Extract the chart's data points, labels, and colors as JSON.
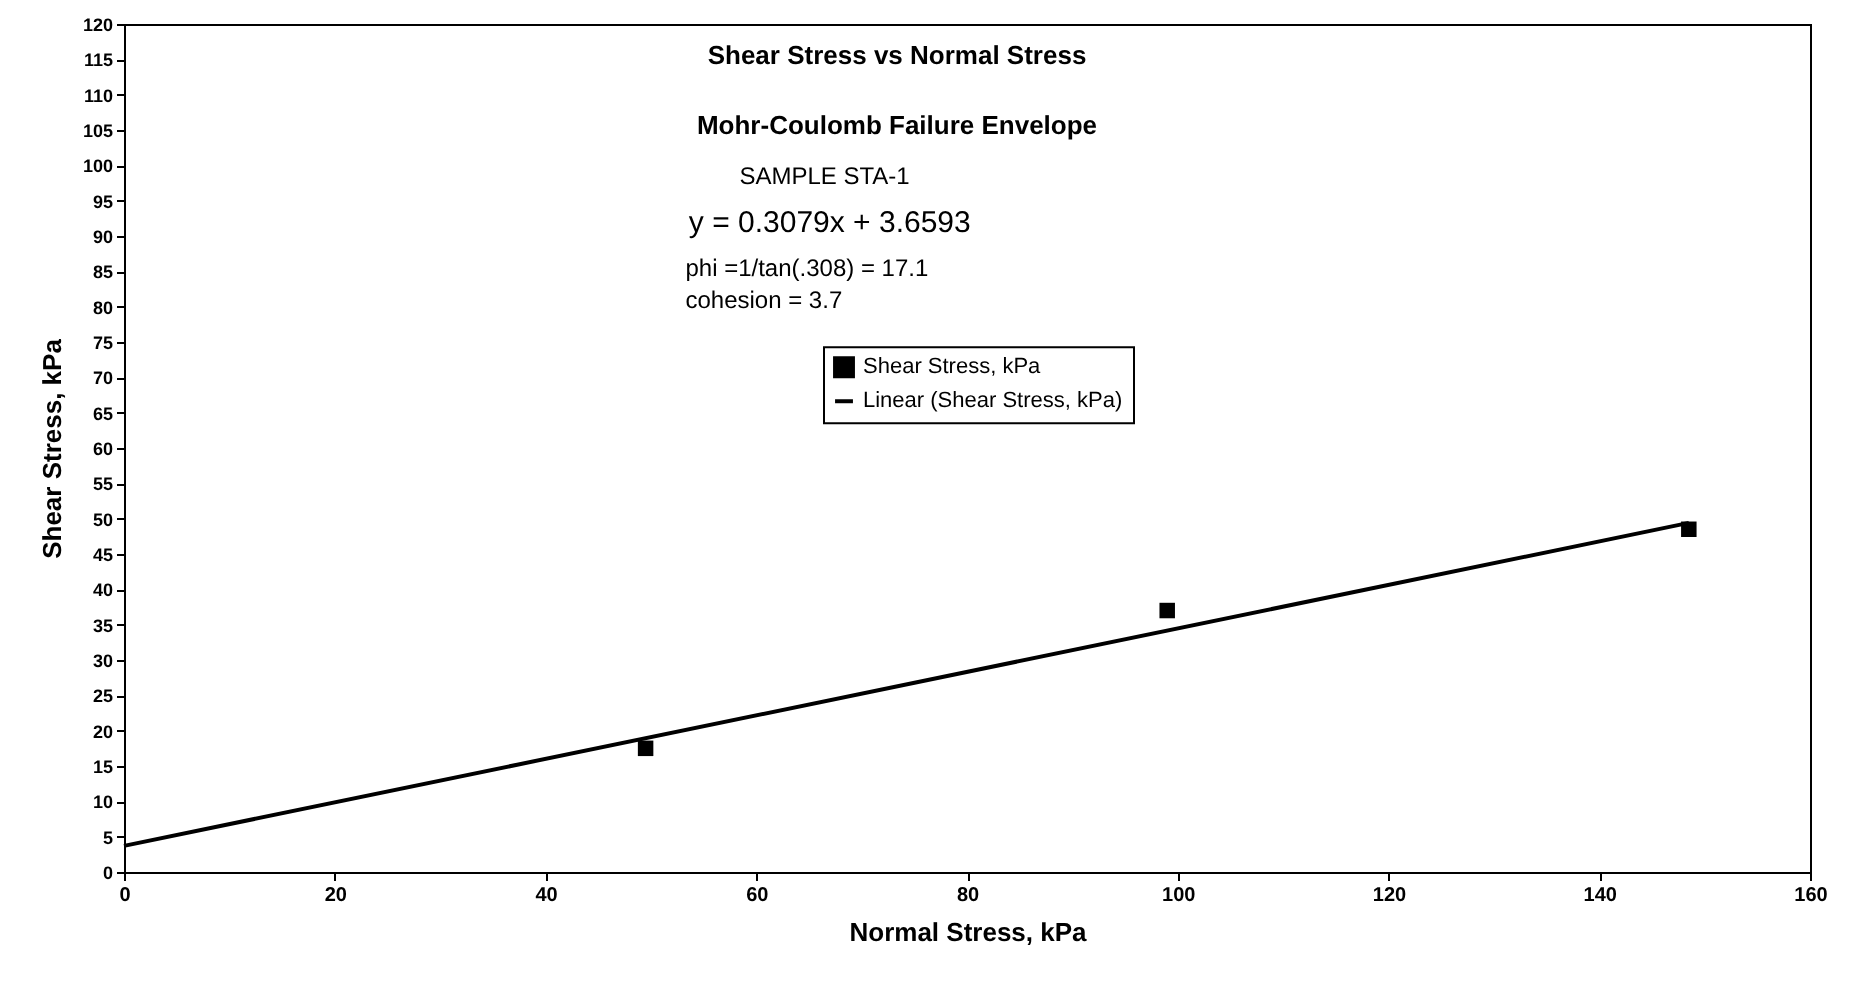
{
  "chart_data": {
    "type": "scatter",
    "title": "Shear Stress vs Normal Stress",
    "subtitle": "Mohr-Coulomb Failure Envelope",
    "xlabel": "Normal Stress, kPa",
    "ylabel": "Shear Stress, kPa",
    "annotations": [
      "SAMPLE  STA-1",
      "y = 0.3079x + 3.6593",
      "phi =1/tan(.308) = 17.1",
      "cohesion = 3.7"
    ],
    "x": [
      49.5,
      99,
      148.5
    ],
    "series": [
      {
        "name": "Shear Stress, kPa",
        "color": "#000000",
        "values": [
          17.5,
          37,
          48.5
        ]
      },
      {
        "name": "Linear (Shear Stress, kPa)",
        "type": "line",
        "color": "#000000",
        "marker": "none",
        "x": [
          0,
          148.5
        ],
        "values": [
          3.7,
          49.4
        ]
      }
    ],
    "xlim": [
      0,
      160
    ],
    "xticks": [
      0,
      20,
      40,
      60,
      80,
      100,
      120,
      140,
      160
    ],
    "ylim": [
      0,
      120
    ],
    "yticks": [
      0,
      5,
      10,
      15,
      20,
      25,
      30,
      35,
      40,
      45,
      50,
      55,
      60,
      65,
      70,
      75,
      80,
      85,
      90,
      95,
      100,
      105,
      110,
      115,
      120
    ],
    "grid": false,
    "legend": "top",
    "marker": "square",
    "line_style": "solid"
  }
}
